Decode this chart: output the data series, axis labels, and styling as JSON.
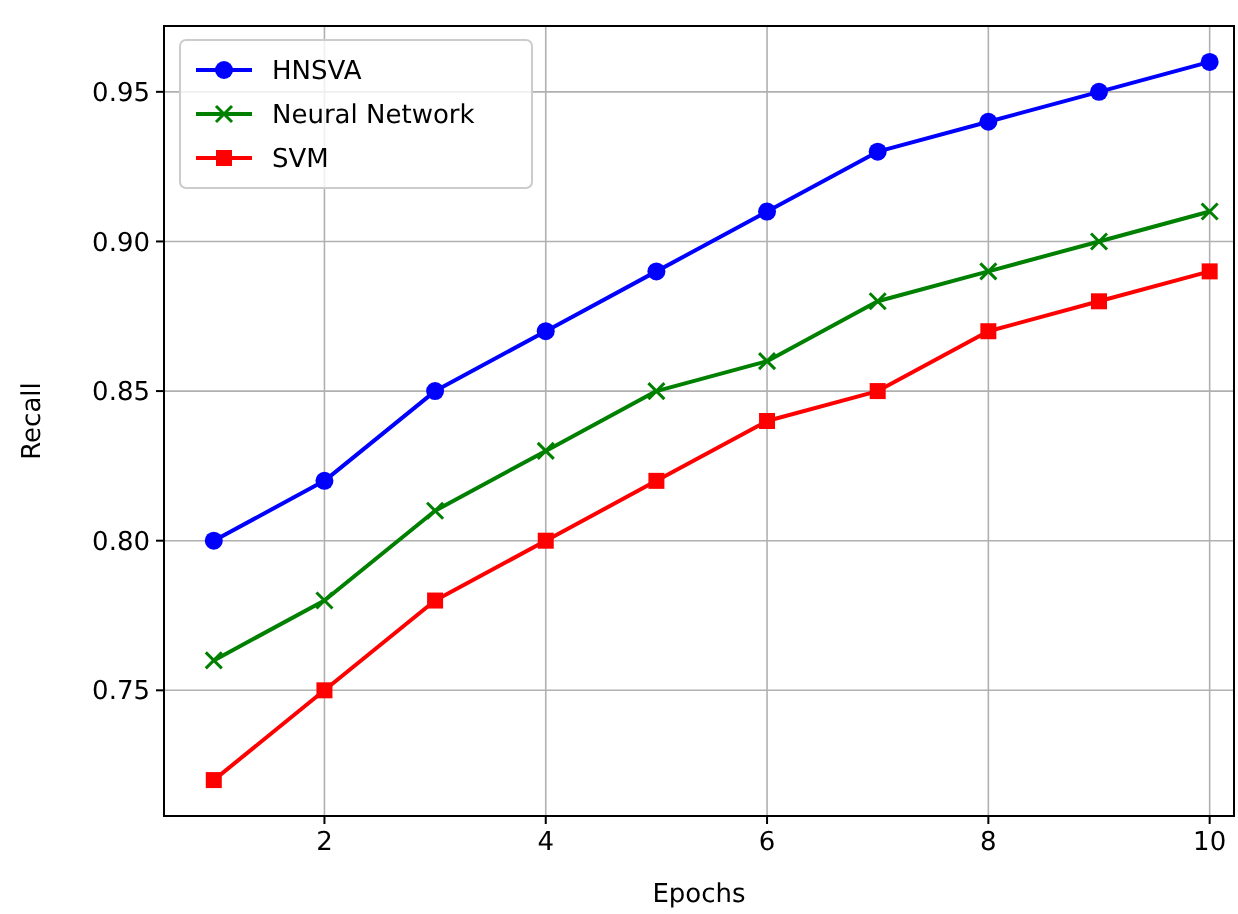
{
  "chart_data": {
    "type": "line",
    "xlabel": "Epochs",
    "ylabel": "Recall",
    "x": [
      1,
      2,
      3,
      4,
      5,
      6,
      7,
      8,
      9,
      10
    ],
    "series": [
      {
        "name": "HNSVA",
        "color": "#0000ff",
        "marker": "circle",
        "values": [
          0.8,
          0.82,
          0.85,
          0.87,
          0.89,
          0.91,
          0.93,
          0.94,
          0.95,
          0.96
        ]
      },
      {
        "name": "Neural Network",
        "color": "#008000",
        "marker": "cross",
        "values": [
          0.76,
          0.78,
          0.81,
          0.83,
          0.85,
          0.86,
          0.88,
          0.89,
          0.9,
          0.91
        ]
      },
      {
        "name": "SVM",
        "color": "#ff0000",
        "marker": "square",
        "values": [
          0.72,
          0.75,
          0.78,
          0.8,
          0.82,
          0.84,
          0.85,
          0.87,
          0.88,
          0.89
        ]
      }
    ],
    "xlim": [
      0.55,
      10.22
    ],
    "xticks": [
      2,
      4,
      6,
      8,
      10
    ],
    "ylim": [
      0.708,
      0.972
    ],
    "yticks": [
      {
        "value": 0.75,
        "label": "0.75"
      },
      {
        "value": 0.8,
        "label": "0.80"
      },
      {
        "value": 0.85,
        "label": "0.85"
      },
      {
        "value": 0.9,
        "label": "0.90"
      },
      {
        "value": 0.95,
        "label": "0.95"
      }
    ],
    "grid": true,
    "legend": "top left"
  }
}
